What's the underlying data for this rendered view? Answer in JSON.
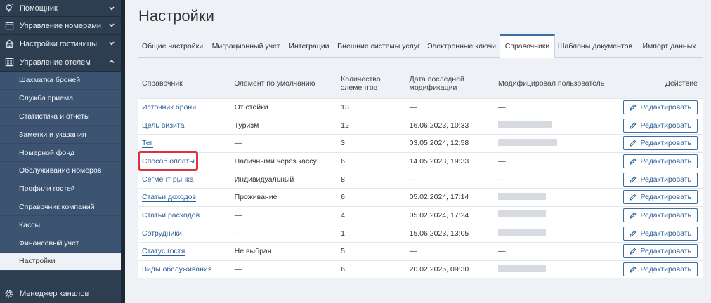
{
  "sidebar": {
    "top_items": [
      {
        "label": "Помощник",
        "icon": "lightbulb-icon",
        "chevron": "chevron-down-icon"
      },
      {
        "label": "Управление номерами",
        "icon": "calendar-icon",
        "chevron": "chevron-down-icon"
      },
      {
        "label": "Настройки гостиницы",
        "icon": "home-icon",
        "chevron": "chevron-down-icon"
      },
      {
        "label": "Управление отелем",
        "icon": "grid-icon",
        "chevron": "chevron-up-icon"
      }
    ],
    "sub_items": [
      {
        "label": "Шахматка броней"
      },
      {
        "label": "Служба приема"
      },
      {
        "label": "Статистика и отчеты"
      },
      {
        "label": "Заметки и указания"
      },
      {
        "label": "Номерной фонд"
      },
      {
        "label": "Обслуживание номеров"
      },
      {
        "label": "Профили гостей"
      },
      {
        "label": "Справочник компаний"
      },
      {
        "label": "Кассы"
      },
      {
        "label": "Финансовый учет"
      },
      {
        "label": "Настройки",
        "active": true
      }
    ],
    "bottom_item": {
      "label": "Менеджер каналов",
      "icon": "gear-icon"
    }
  },
  "page": {
    "title": "Настройки"
  },
  "tabs": [
    {
      "label": "Общие настройки"
    },
    {
      "label": "Миграционный учет"
    },
    {
      "label": "Интеграции"
    },
    {
      "label": "Внешние системы услуг"
    },
    {
      "label": "Электронные ключи"
    },
    {
      "label": "Справочники",
      "active": true
    },
    {
      "label": "Шаблоны документов"
    },
    {
      "label": "Импорт данных"
    }
  ],
  "table": {
    "headers": {
      "name": "Справочник",
      "default": "Элемент по умолчанию",
      "count_l1": "Количество",
      "count_l2": "элементов",
      "date_l1": "Дата последней",
      "date_l2": "модификации",
      "user": "Модифицировал пользователь",
      "action": "Действие"
    },
    "edit_label": "Редактировать",
    "rows": [
      {
        "name": "Источник брони",
        "default": "От стойки",
        "count": "13",
        "date": "—",
        "user": "—"
      },
      {
        "name": "Цель визита",
        "default": "Туризм",
        "count": "12",
        "date": "16.06.2023, 10:33",
        "user": ""
      },
      {
        "name": "Тег",
        "default": "—",
        "count": "3",
        "date": "03.05.2024, 12:58",
        "user": ""
      },
      {
        "name": "Способ оплаты",
        "default": "Наличными через кассу",
        "count": "6",
        "date": "14.05.2023, 19:33",
        "user": "—"
      },
      {
        "name": "Сегмент рынка",
        "default": "Индивидуальный",
        "count": "8",
        "date": "—",
        "user": "—"
      },
      {
        "name": "Статьи доходов",
        "default": "Проживание",
        "count": "6",
        "date": "05.02.2024, 17:14",
        "user": ""
      },
      {
        "name": "Статьи расходов",
        "default": "—",
        "count": "4",
        "date": "05.02.2024, 17:24",
        "user": ""
      },
      {
        "name": "Сотрудники",
        "default": "—",
        "count": "1",
        "date": "15.06.2023, 13:05",
        "user": ""
      },
      {
        "name": "Статус гостя",
        "default": "Не выбран",
        "count": "5",
        "date": "—",
        "user": "—"
      },
      {
        "name": "Виды обслуживания",
        "default": "—",
        "count": "6",
        "date": "20.02.2025, 09:30",
        "user": ""
      }
    ]
  },
  "colors": {
    "highlight": "#d9333f",
    "accent": "#2e5e9a",
    "sidebar": "#2c3e50"
  }
}
